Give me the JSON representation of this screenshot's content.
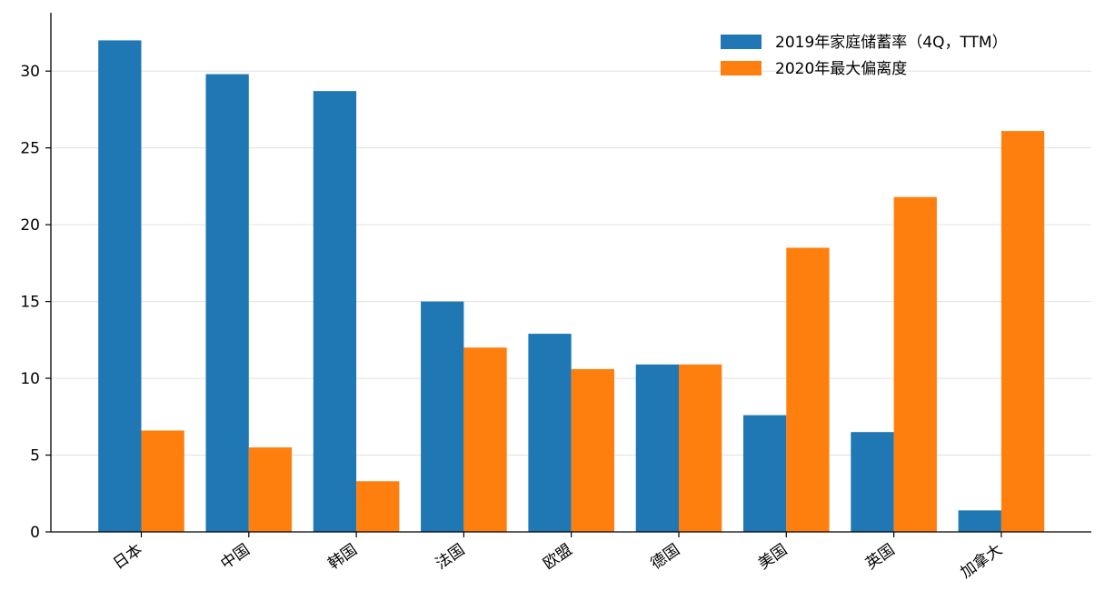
{
  "chart_data": {
    "type": "bar",
    "categories": [
      "日本",
      "中国",
      "韩国",
      "法国",
      "欧盟",
      "德国",
      "美国",
      "英国",
      "加拿大"
    ],
    "series": [
      {
        "name": "2019年家庭储蓄率（4Q，TTM）",
        "color": "#1f77b4",
        "values": [
          32.0,
          29.8,
          28.7,
          15.0,
          12.9,
          10.9,
          7.6,
          6.5,
          1.4
        ]
      },
      {
        "name": "2020年最大偏离度",
        "color": "#ff7f0e",
        "values": [
          6.6,
          5.5,
          3.3,
          12.0,
          10.6,
          10.9,
          18.5,
          21.8,
          26.1
        ]
      }
    ],
    "yticks": [
      "0",
      "5",
      "10",
      "15",
      "20",
      "25",
      "30"
    ],
    "ylim": [
      0,
      33.8
    ],
    "grid": "y",
    "legend": "top-right",
    "title": "",
    "xlabel": "",
    "ylabel": ""
  }
}
